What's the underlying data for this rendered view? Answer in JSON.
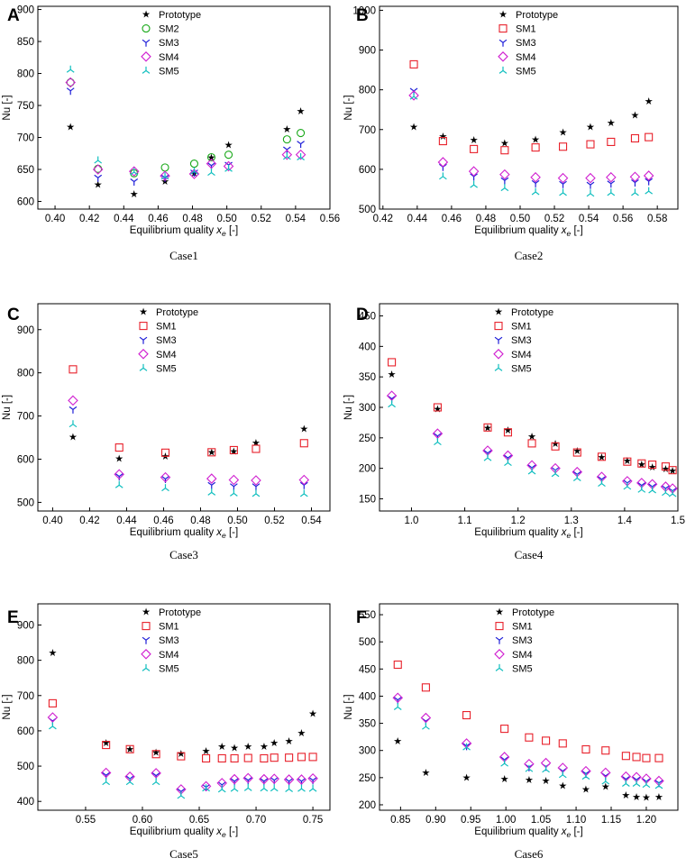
{
  "figure": {
    "panel_letters": [
      "A",
      "B",
      "C",
      "D",
      "E",
      "F"
    ],
    "captions": [
      "Case1",
      "Case2",
      "Case3",
      "Case4",
      "Case5",
      "Case6"
    ],
    "marker_styles": {
      "Prototype": {
        "shape": "star",
        "color": "#000000"
      },
      "SM1": {
        "shape": "square",
        "color": "#e8202a"
      },
      "SM2": {
        "shape": "circle",
        "color": "#18a818"
      },
      "SM3": {
        "shape": "tri_down",
        "color": "#2020d8"
      },
      "SM4": {
        "shape": "diamond",
        "color": "#d020d0"
      },
      "SM5": {
        "shape": "tri_up",
        "color": "#10bfbf"
      }
    }
  },
  "chart_data": [
    {
      "type": "scatter",
      "panel": "A",
      "caption": "Case1",
      "xlabel": "Equilibrium quality x_e [-]",
      "ylabel": "Nu [-]",
      "xlim": [
        0.39,
        0.56
      ],
      "ylim": [
        588,
        905
      ],
      "xticks": [
        0.4,
        0.42,
        0.44,
        0.46,
        0.48,
        0.5,
        0.52,
        0.54,
        0.56
      ],
      "yticks": [
        600,
        650,
        700,
        750,
        800,
        850,
        900
      ],
      "x": [
        0.409,
        0.425,
        0.446,
        0.464,
        0.481,
        0.491,
        0.501,
        0.535,
        0.543
      ],
      "series": [
        {
          "name": "Prototype",
          "values": [
            716,
            626,
            611,
            631,
            644,
            668,
            688,
            713,
            741
          ]
        },
        {
          "name": "SM2",
          "values": [
            786,
            651,
            644,
            653,
            659,
            669,
            673,
            697,
            707
          ]
        },
        {
          "name": "SM3",
          "values": [
            773,
            637,
            631,
            637,
            645,
            656,
            657,
            681,
            690
          ]
        },
        {
          "name": "SM4",
          "values": [
            786,
            650,
            647,
            640,
            643,
            659,
            655,
            673,
            673
          ]
        },
        {
          "name": "SM5",
          "values": [
            806,
            664,
            646,
            639,
            647,
            645,
            651,
            670,
            669
          ]
        }
      ]
    },
    {
      "type": "scatter",
      "panel": "B",
      "caption": "Case2",
      "xlabel": "Equilibrium quality x_e [-]",
      "ylabel": "Nu [-]",
      "xlim": [
        0.418,
        0.592
      ],
      "ylim": [
        500,
        1010
      ],
      "xticks": [
        0.42,
        0.44,
        0.46,
        0.48,
        0.5,
        0.52,
        0.54,
        0.56,
        0.58
      ],
      "yticks": [
        500,
        600,
        700,
        800,
        900,
        1000
      ],
      "x": [
        0.438,
        0.455,
        0.473,
        0.491,
        0.509,
        0.525,
        0.541,
        0.553,
        0.567,
        0.575
      ],
      "series": [
        {
          "name": "Prototype",
          "values": [
            706,
            683,
            673,
            666,
            674,
            693,
            706,
            716,
            736,
            771
          ]
        },
        {
          "name": "SM1",
          "values": [
            864,
            671,
            651,
            648,
            655,
            657,
            663,
            669,
            678,
            681
          ]
        },
        {
          "name": "SM3",
          "values": [
            797,
            606,
            582,
            572,
            565,
            563,
            561,
            564,
            567,
            570
          ]
        },
        {
          "name": "SM4",
          "values": [
            786,
            618,
            595,
            587,
            580,
            578,
            578,
            580,
            581,
            584
          ]
        },
        {
          "name": "SM5",
          "values": [
            783,
            582,
            561,
            553,
            543,
            541,
            539,
            541,
            541,
            545
          ]
        }
      ]
    },
    {
      "type": "scatter",
      "panel": "C",
      "caption": "Case3",
      "xlabel": "Equilibrium quality x_e [-]",
      "ylabel": "Nu [-]",
      "xlim": [
        0.392,
        0.55
      ],
      "ylim": [
        480,
        960
      ],
      "xticks": [
        0.4,
        0.42,
        0.44,
        0.46,
        0.48,
        0.5,
        0.52,
        0.54
      ],
      "yticks": [
        500,
        600,
        700,
        800,
        900
      ],
      "x": [
        0.411,
        0.436,
        0.461,
        0.486,
        0.498,
        0.51,
        0.536
      ],
      "series": [
        {
          "name": "Prototype",
          "values": [
            651,
            601,
            606,
            616,
            618,
            638,
            670
          ]
        },
        {
          "name": "SM1",
          "values": [
            808,
            627,
            615,
            616,
            621,
            624,
            637
          ]
        },
        {
          "name": "SM3",
          "values": [
            715,
            560,
            554,
            540,
            537,
            537,
            540
          ]
        },
        {
          "name": "SM4",
          "values": [
            736,
            565,
            558,
            555,
            552,
            551,
            552
          ]
        },
        {
          "name": "SM5",
          "values": [
            681,
            540,
            533,
            523,
            521,
            520,
            520
          ]
        }
      ]
    },
    {
      "type": "scatter",
      "panel": "D",
      "caption": "Case4",
      "xlabel": "Equilibrium quality x_e [-]",
      "ylabel": "Nu [-]",
      "xlim": [
        0.94,
        1.5
      ],
      "ylim": [
        130,
        470
      ],
      "xticks": [
        1.0,
        1.1,
        1.2,
        1.3,
        1.4,
        1.5
      ],
      "yticks": [
        150,
        200,
        250,
        300,
        350,
        400,
        450
      ],
      "x": [
        0.963,
        1.049,
        1.143,
        1.181,
        1.226,
        1.27,
        1.311,
        1.357,
        1.405,
        1.432,
        1.452,
        1.477,
        1.49
      ],
      "series": [
        {
          "name": "Prototype",
          "values": [
            354,
            297,
            266,
            262,
            252,
            240,
            228,
            218,
            212,
            206,
            202,
            199,
            196
          ]
        },
        {
          "name": "SM1",
          "values": [
            374,
            300,
            267,
            259,
            241,
            236,
            226,
            219,
            211,
            208,
            206,
            203,
            197
          ]
        },
        {
          "name": "SM3",
          "values": [
            314,
            253,
            225,
            217,
            201,
            197,
            190,
            182,
            176,
            172,
            170,
            167,
            163
          ]
        },
        {
          "name": "SM4",
          "values": [
            319,
            257,
            229,
            221,
            205,
            200,
            194,
            186,
            179,
            176,
            174,
            170,
            167
          ]
        },
        {
          "name": "SM5",
          "values": [
            305,
            243,
            217,
            209,
            195,
            191,
            184,
            175,
            170,
            165,
            164,
            160,
            158
          ]
        }
      ]
    },
    {
      "type": "scatter",
      "panel": "E",
      "caption": "Case5",
      "xlabel": "Equilibrium quality x_e [-]",
      "ylabel": "Nu [-]",
      "xlim": [
        0.508,
        0.765
      ],
      "ylim": [
        375,
        960
      ],
      "xticks": [
        0.55,
        0.6,
        0.65,
        0.7,
        0.75
      ],
      "yticks": [
        400,
        500,
        600,
        700,
        800,
        900
      ],
      "x": [
        0.521,
        0.568,
        0.589,
        0.612,
        0.634,
        0.656,
        0.67,
        0.681,
        0.693,
        0.707,
        0.716,
        0.729,
        0.74,
        0.75
      ],
      "series": [
        {
          "name": "Prototype",
          "values": [
            821,
            565,
            548,
            538,
            535,
            542,
            555,
            551,
            555,
            555,
            565,
            570,
            594,
            648
          ]
        },
        {
          "name": "SM1",
          "values": [
            678,
            560,
            548,
            534,
            528,
            522,
            522,
            522,
            523,
            522,
            524,
            524,
            526,
            526
          ]
        },
        {
          "name": "SM3",
          "values": [
            628,
            474,
            464,
            473,
            428,
            440,
            447,
            457,
            460,
            457,
            460,
            457,
            457,
            460
          ]
        },
        {
          "name": "SM4",
          "values": [
            638,
            481,
            470,
            480,
            434,
            443,
            452,
            463,
            466,
            463,
            464,
            462,
            462,
            465
          ]
        },
        {
          "name": "SM5",
          "values": [
            613,
            455,
            455,
            455,
            416,
            437,
            434,
            436,
            438,
            437,
            437,
            435,
            436,
            436
          ]
        }
      ]
    },
    {
      "type": "scatter",
      "panel": "F",
      "caption": "Case6",
      "xlabel": "Equilibrium quality x_e [-]",
      "ylabel": "Nu [-]",
      "xlim": [
        0.82,
        1.245
      ],
      "ylim": [
        190,
        570
      ],
      "xticks": [
        0.85,
        0.9,
        0.95,
        1.0,
        1.05,
        1.1,
        1.15,
        1.2
      ],
      "yticks": [
        200,
        250,
        300,
        350,
        400,
        450,
        500,
        550
      ],
      "x": [
        0.846,
        0.886,
        0.944,
        0.998,
        1.033,
        1.057,
        1.081,
        1.114,
        1.142,
        1.171,
        1.186,
        1.2,
        1.218
      ],
      "series": [
        {
          "name": "Prototype",
          "values": [
            317,
            259,
            250,
            247,
            246,
            244,
            235,
            228,
            233,
            217,
            214,
            213,
            214
          ]
        },
        {
          "name": "SM1",
          "values": [
            458,
            416,
            365,
            340,
            324,
            318,
            313,
            302,
            300,
            290,
            288,
            286,
            286
          ]
        },
        {
          "name": "SM3",
          "values": [
            393,
            354,
            308,
            283,
            269,
            270,
            262,
            257,
            253,
            247,
            246,
            243,
            240
          ]
        },
        {
          "name": "SM4",
          "values": [
            397,
            360,
            313,
            288,
            275,
            277,
            268,
            262,
            259,
            252,
            251,
            248,
            244
          ]
        },
        {
          "name": "SM5",
          "values": [
            380,
            344,
            306,
            276,
            266,
            265,
            255,
            252,
            243,
            239,
            239,
            237,
            235
          ]
        }
      ]
    }
  ]
}
